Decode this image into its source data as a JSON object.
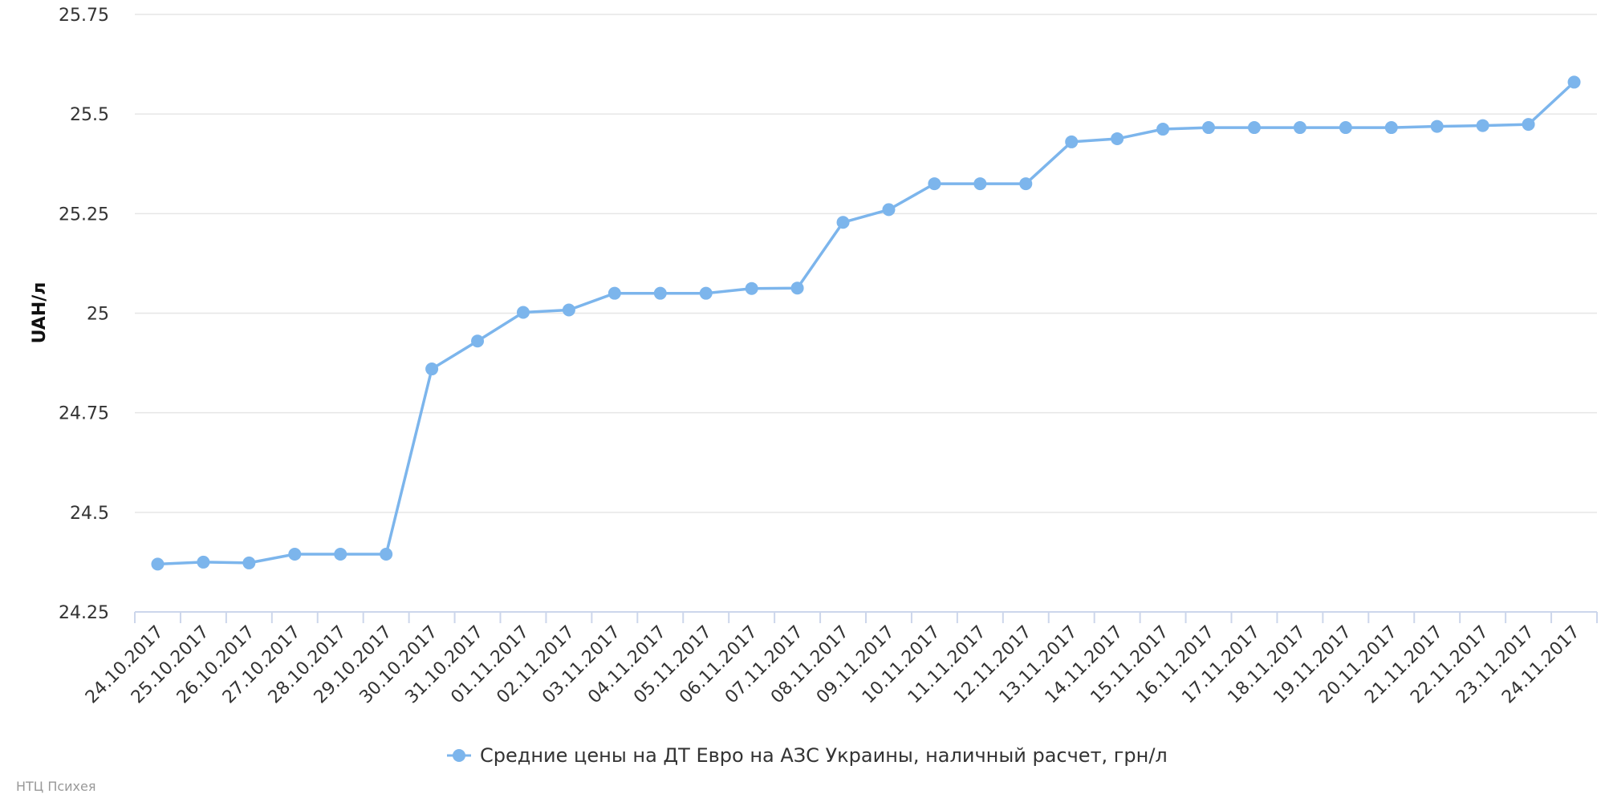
{
  "chart_data": {
    "type": "line",
    "title": "",
    "xlabel": "",
    "ylabel": "UAH/л",
    "ylim": [
      24.25,
      25.75
    ],
    "yticks": [
      "24.25",
      "24.5",
      "24.75",
      "25",
      "25.25",
      "25.5",
      "25.75"
    ],
    "grid": true,
    "legend_position": "bottom",
    "categories": [
      "24.10.2017",
      "25.10.2017",
      "26.10.2017",
      "27.10.2017",
      "28.10.2017",
      "29.10.2017",
      "30.10.2017",
      "31.10.2017",
      "01.11.2017",
      "02.11.2017",
      "03.11.2017",
      "04.11.2017",
      "05.11.2017",
      "06.11.2017",
      "07.11.2017",
      "08.11.2017",
      "09.11.2017",
      "10.11.2017",
      "11.11.2017",
      "12.11.2017",
      "13.11.2017",
      "14.11.2017",
      "15.11.2017",
      "16.11.2017",
      "17.11.2017",
      "18.11.2017",
      "19.11.2017",
      "20.11.2017",
      "21.11.2017",
      "22.11.2017",
      "23.11.2017",
      "24.11.2017"
    ],
    "series": [
      {
        "name": "Средние цены на ДТ Евро на АЗС Украины, наличный расчет, грн/л",
        "color": "#7cb5ec",
        "values": [
          24.37,
          24.375,
          24.373,
          24.395,
          24.395,
          24.395,
          24.86,
          24.93,
          25.002,
          25.008,
          25.05,
          25.05,
          25.05,
          25.062,
          25.063,
          25.228,
          25.26,
          25.325,
          25.325,
          25.325,
          25.43,
          25.438,
          25.462,
          25.466,
          25.466,
          25.466,
          25.466,
          25.466,
          25.469,
          25.471,
          25.474,
          25.58
        ]
      }
    ]
  },
  "credit": "НТЦ Психея",
  "colors": {
    "series": "#7cb5ec",
    "grid": "#e6e6e6",
    "axis": "#ccd6eb"
  }
}
